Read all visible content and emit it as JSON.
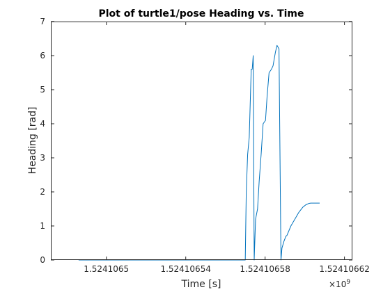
{
  "chart_data": {
    "type": "line",
    "title": "Plot of turtle1/pose Heading vs. Time",
    "xlabel": "Time [s]",
    "ylabel": "Heading [rad]",
    "x_exponent_label": "×10",
    "x_exponent_power": "9",
    "xlim": [
      1.524106472,
      1.524106624
    ],
    "ylim": [
      0,
      7
    ],
    "x_ticks": [
      {
        "value": 1.5241065,
        "label": "1.5241065"
      },
      {
        "value": 1.52410654,
        "label": "1.52410654"
      },
      {
        "value": 1.52410658,
        "label": "1.52410658"
      },
      {
        "value": 1.52410662,
        "label": "1.52410662"
      }
    ],
    "y_ticks": [
      {
        "value": 0,
        "label": "0"
      },
      {
        "value": 1,
        "label": "1"
      },
      {
        "value": 2,
        "label": "2"
      },
      {
        "value": 3,
        "label": "3"
      },
      {
        "value": 4,
        "label": "4"
      },
      {
        "value": 5,
        "label": "5"
      },
      {
        "value": 6,
        "label": "6"
      },
      {
        "value": 7,
        "label": "7"
      }
    ],
    "grid": false,
    "line_color": "#0072bd",
    "series": [
      {
        "x": [
          1.524106486,
          1.52410657,
          1.5241065705,
          1.5241065712,
          1.524106572,
          1.524106573,
          1.5241065735,
          1.524106574,
          1.5241065745,
          1.5241065752,
          1.5241065762,
          1.524106577,
          1.524106578,
          1.524106579,
          1.5241065802,
          1.524106581,
          1.524106582,
          1.5241065832,
          1.524106584,
          1.5241065852,
          1.524106586,
          1.524106587,
          1.524106588,
          1.5241065885,
          1.5241065895,
          1.5241065905,
          1.524106591,
          1.524106593,
          1.524106595,
          1.524106597,
          1.524106599,
          1.5241066005,
          1.524106602,
          1.524106603,
          1.5241066042,
          1.524106606,
          1.524106607,
          1.5241066075
        ],
        "y": [
          0.0,
          0.0,
          2.0,
          3.1,
          3.6,
          5.6,
          5.6,
          6.0,
          0.0,
          1.2,
          1.5,
          2.3,
          3.1,
          4.0,
          4.1,
          4.8,
          5.5,
          5.6,
          5.7,
          6.1,
          6.3,
          6.2,
          0.0,
          0.35,
          0.55,
          0.7,
          0.72,
          1.0,
          1.2,
          1.4,
          1.55,
          1.62,
          1.66,
          1.67,
          1.67,
          1.67,
          1.67,
          1.67
        ]
      }
    ]
  }
}
